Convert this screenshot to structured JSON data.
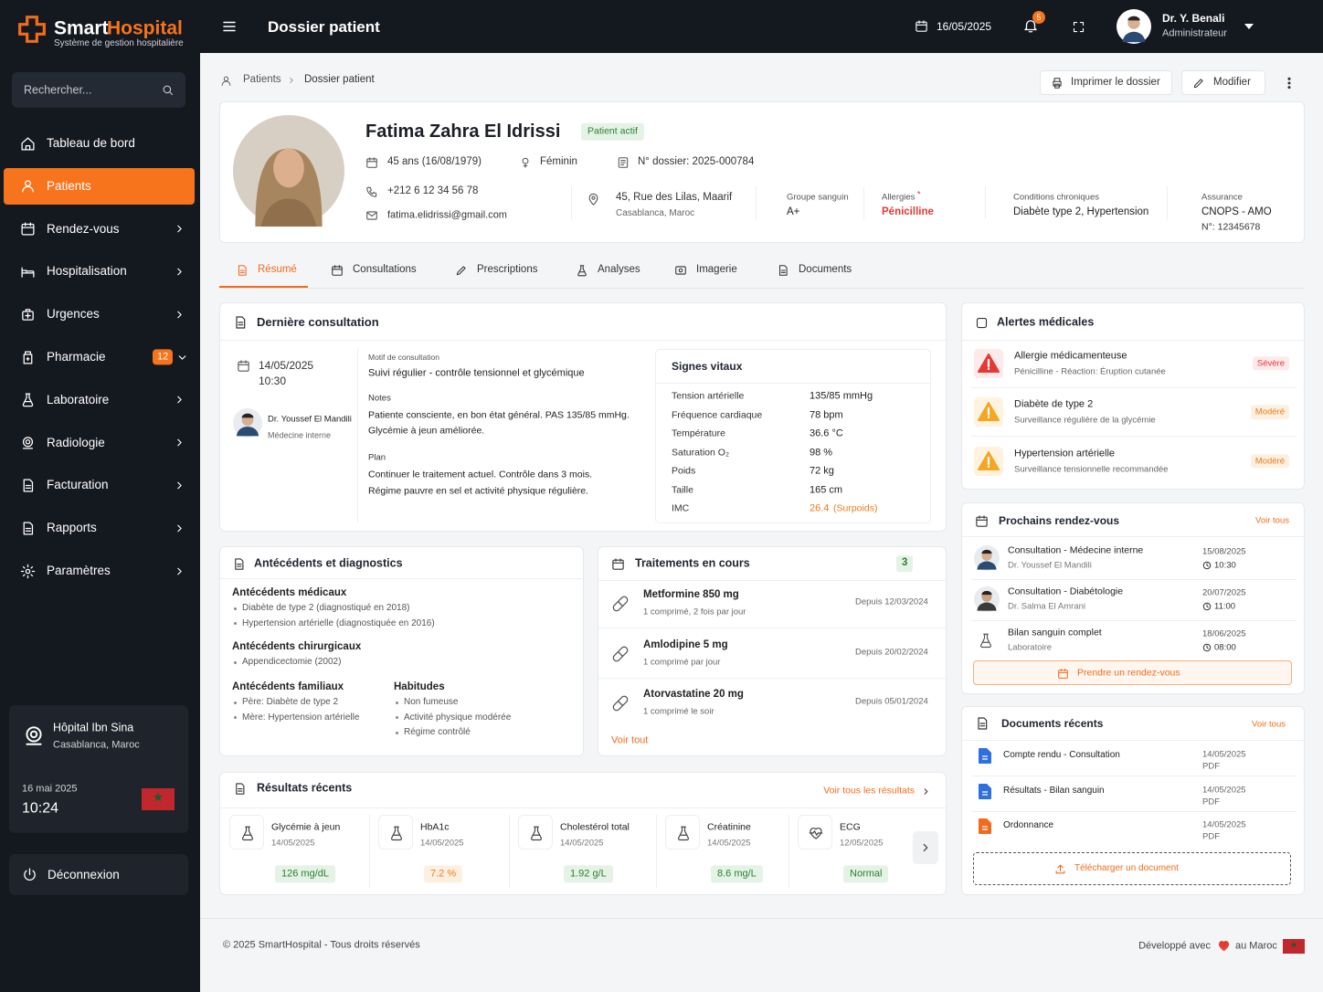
{
  "brand": {
    "name1": "Smart",
    "name2": "Hospital",
    "tagline": "Système de gestion hospitalière"
  },
  "search_placeholder": "Rechercher...",
  "nav": [
    {
      "label": "Tableau de bord"
    },
    {
      "label": "Patients",
      "active": true
    },
    {
      "label": "Rendez-vous",
      "submenu": true
    },
    {
      "label": "Hospitalisation",
      "submenu": true
    },
    {
      "label": "Urgences",
      "submenu": true
    },
    {
      "label": "Pharmacie",
      "submenu": true,
      "badge": 12
    },
    {
      "label": "Laboratoire",
      "submenu": true
    },
    {
      "label": "Radiologie",
      "submenu": true
    },
    {
      "label": "Facturation",
      "submenu": true
    },
    {
      "label": "Rapports",
      "submenu": true
    },
    {
      "label": "Paramètres",
      "submenu": true
    }
  ],
  "hospital": {
    "name": "Hôpital Ibn Sina",
    "city": "Casablanca, Maroc",
    "date": "16 mai 2025",
    "time": "10:24"
  },
  "logout": "Déconnexion",
  "topbar": {
    "title": "Dossier patient",
    "date": "16/05/2025",
    "notifications": 5,
    "user_name": "Dr. Y. Benali",
    "user_role": "Administrateur"
  },
  "breadcrumb": [
    "Patients",
    "Dossier patient"
  ],
  "actions": {
    "print": "Imprimer le dossier",
    "edit": "Modifier"
  },
  "patient": {
    "name": "Fatima Zahra El Idrissi",
    "status": "Patient actif",
    "age": "45 ans (16/08/1979)",
    "gender": "Féminin",
    "file": "N° dossier: 2025-000784",
    "phone": "+212 6 12 34 56 78",
    "email": "fatima.elidrissi@gmail.com",
    "address": "45, Rue des Lilas, Maarif",
    "city": "Casablanca, Maroc",
    "blood_label": "Groupe sanguin",
    "blood": "A+",
    "allergies_label": "Allergies",
    "allergies_mark": "*",
    "allergies": "Pénicilline",
    "conditions_label": "Conditions chroniques",
    "conditions": "Diabète type 2, Hypertension",
    "insurance_label": "Assurance",
    "insurance": "CNOPS - AMO",
    "insurance_no": "N°: 12345678"
  },
  "tabs": [
    {
      "label": "Résumé",
      "active": true
    },
    {
      "label": "Consultations"
    },
    {
      "label": "Prescriptions"
    },
    {
      "label": "Analyses"
    },
    {
      "label": "Imagerie"
    },
    {
      "label": "Documents"
    }
  ],
  "last_consultation": {
    "title": "Dernière consultation",
    "date": "14/05/2025",
    "time": "10:30",
    "doctor": "Dr. Youssef El Mandili",
    "doctor_role": "Médecine interne",
    "reason_label": "Motif de consultation",
    "reason": "Suivi régulier - contrôle tensionnel et glycémique",
    "notes_label": "Notes",
    "notes": [
      "Patiente consciente, en bon état général. PAS 135/85 mmHg.",
      "Glycémie à jeun améliorée."
    ],
    "plan_label": "Plan",
    "plan": [
      "Continuer le traitement actuel. Contrôle dans 3 mois.",
      "Régime pauvre en sel et activité physique régulière."
    ]
  },
  "vitals": {
    "title": "Signes vitaux",
    "rows": [
      {
        "label": "Tension artérielle",
        "value": "135/85 mmHg"
      },
      {
        "label": "Fréquence cardiaque",
        "value": "78 bpm"
      },
      {
        "label": "Température",
        "value": "36.6 °C"
      },
      {
        "label": "Saturation O₂",
        "value": "98 %"
      },
      {
        "label": "Poids",
        "value": "72 kg"
      },
      {
        "label": "Taille",
        "value": "165 cm"
      },
      {
        "label": "IMC",
        "value": "26.4",
        "note": "(Surpoids)",
        "warning": true
      }
    ]
  },
  "history": {
    "title": "Antécédents et diagnostics",
    "groups": [
      {
        "title": "Antécédents médicaux",
        "items": [
          "Diabète de type 2 (diagnostiqué en 2018)",
          "Hypertension artérielle (diagnostiquée en 2016)"
        ]
      },
      {
        "title": "Antécédents chirurgicaux",
        "items": [
          "Appendicectomie (2002)"
        ]
      },
      {
        "title": "Antécédents familiaux",
        "items": [
          "Père: Diabète de type 2",
          "Mère: Hypertension artérielle"
        ]
      },
      {
        "title": "Habitudes",
        "items": [
          "Non fumeuse",
          "Activité physique modérée",
          "Régime contrôlé"
        ]
      }
    ]
  },
  "treatments": {
    "title": "Traitements en cours",
    "count": 3,
    "items": [
      {
        "name": "Metformine 850 mg",
        "dose": "1 comprimé, 2 fois par jour",
        "since": "Depuis 12/03/2024"
      },
      {
        "name": "Amlodipine 5 mg",
        "dose": "1 comprimé par jour",
        "since": "Depuis 20/02/2024"
      },
      {
        "name": "Atorvastatine 20 mg",
        "dose": "1 comprimé le soir",
        "since": "Depuis 05/01/2024"
      }
    ],
    "link": "Voir tout"
  },
  "results": {
    "title": "Résultats récents",
    "link": "Voir tous les résultats",
    "items": [
      {
        "name": "Glycémie à jeun",
        "date": "14/05/2025",
        "value": "126 mg/dL",
        "status": "normal"
      },
      {
        "name": "HbA1c",
        "date": "14/05/2025",
        "value": "7.2 %",
        "status": "warning"
      },
      {
        "name": "Cholestérol total",
        "date": "14/05/2025",
        "value": "1.92 g/L",
        "status": "normal"
      },
      {
        "name": "Créatinine",
        "date": "14/05/2025",
        "value": "8.6 mg/L",
        "status": "normal"
      },
      {
        "name": "ECG",
        "date": "12/05/2025",
        "value": "Normal",
        "status": "normal"
      }
    ]
  },
  "alerts": {
    "title": "Alertes médicales",
    "items": [
      {
        "title": "Allergie médicamenteuse",
        "desc": "Pénicilline - Réaction: Éruption cutanée",
        "level": "Sévère",
        "severity": "high"
      },
      {
        "title": "Diabète de type 2",
        "desc": "Surveillance régulière de la glycémie",
        "level": "Modéré",
        "severity": "medium"
      },
      {
        "title": "Hypertension artérielle",
        "desc": "Surveillance tensionnelle recommandée",
        "level": "Modéré",
        "severity": "medium"
      }
    ]
  },
  "appointments": {
    "title": "Prochains rendez-vous",
    "link": "Voir tous",
    "items": [
      {
        "title": "Consultation - Médecine interne",
        "who": "Dr. Youssef El Mandili",
        "date": "15/08/2025",
        "time": "10:30"
      },
      {
        "title": "Consultation - Diabétologie",
        "who": "Dr. Salma El Amrani",
        "date": "20/07/2025",
        "time": "11:00"
      },
      {
        "title": "Bilan sanguin complet",
        "who": "Laboratoire",
        "date": "18/06/2025",
        "time": "08:00"
      }
    ],
    "button": "Prendre un rendez-vous"
  },
  "documents": {
    "title": "Documents récents",
    "link": "Voir tous",
    "items": [
      {
        "name": "Compte rendu - Consultation",
        "date": "14/05/2025",
        "type": "PDF"
      },
      {
        "name": "Résultats - Bilan sanguin",
        "date": "14/05/2025",
        "type": "PDF"
      },
      {
        "name": "Ordonnance",
        "date": "14/05/2025",
        "type": "PDF"
      }
    ],
    "upload": "Télécharger un document"
  },
  "footer": {
    "copyright": "© 2025 SmartHospital - Tous droits réservés",
    "dev_before": "Développé avec",
    "dev_after": "au Maroc"
  }
}
